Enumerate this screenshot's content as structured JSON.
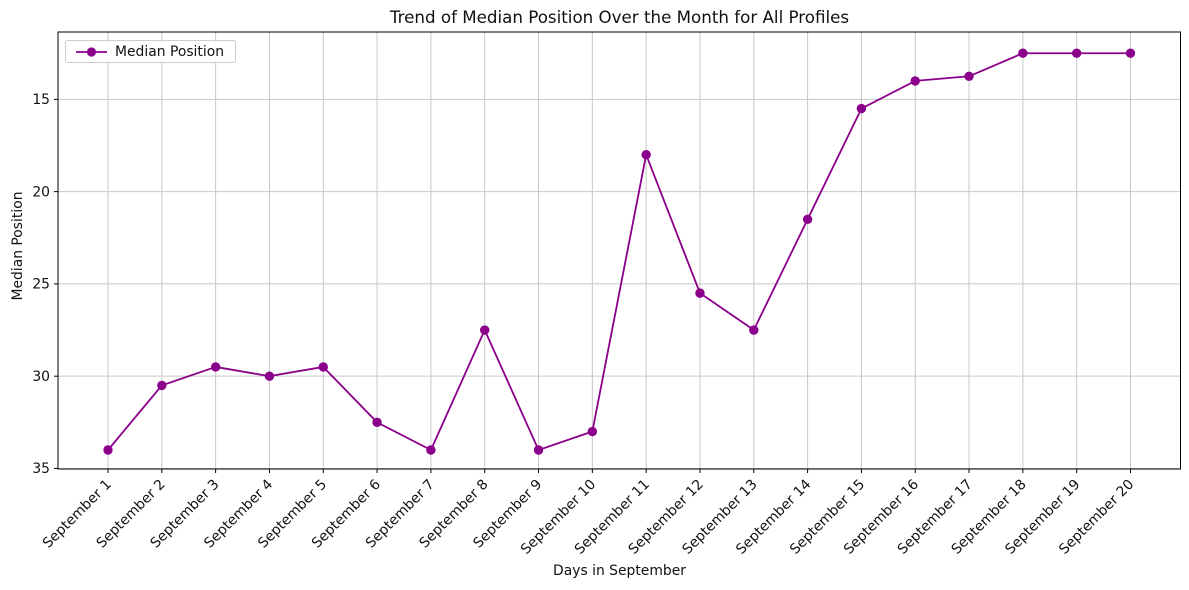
{
  "chart_data": {
    "type": "line",
    "title": "Trend of Median Position Over the Month for All Profiles",
    "xlabel": "Days in September",
    "ylabel": "Median Position",
    "categories": [
      "September 1",
      "September 2",
      "September 3",
      "September 4",
      "September 5",
      "September 6",
      "September 7",
      "September 8",
      "September 9",
      "September 10",
      "September 11",
      "September 12",
      "September 13",
      "September 14",
      "September 15",
      "September 16",
      "September 17",
      "September 18",
      "September 19",
      "September 20"
    ],
    "series": [
      {
        "name": "Median Position",
        "color": "#8B008B",
        "marker": "circle",
        "values": [
          34,
          30.5,
          29.5,
          30,
          29.5,
          32.5,
          34,
          27.5,
          34,
          33,
          18,
          25.5,
          27.5,
          21.5,
          15.5,
          14,
          13.75,
          12.5,
          12.5,
          12.5
        ]
      }
    ],
    "y_ticks": [
      15,
      20,
      25,
      30,
      35
    ],
    "y_axis_inverted": true,
    "ylim_top_to_bottom": [
      11.35,
      35.03
    ],
    "x_tick_rotation_deg": 45,
    "grid": true,
    "legend": {
      "position": "upper left",
      "entries": [
        "Median Position"
      ]
    },
    "colors": {
      "line": "#8B008B",
      "grid": "#c8c8c8",
      "axis": "#000000",
      "text": "#111111",
      "background": "#ffffff"
    }
  }
}
